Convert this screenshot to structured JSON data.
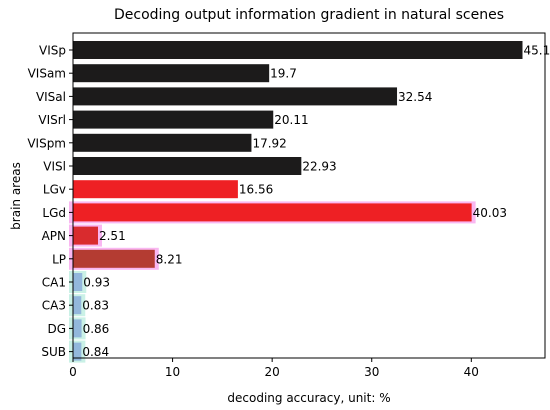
{
  "chart_data": {
    "type": "bar",
    "orientation": "horizontal",
    "title": "Decoding output information gradient in natural scenes",
    "xlabel": "decoding accuracy, unit: %",
    "ylabel": "brain areas",
    "xlim": [
      0,
      47.4
    ],
    "xticks": [
      0,
      10,
      20,
      30,
      40
    ],
    "grid": false,
    "categories": [
      "VISp",
      "VISam",
      "VISal",
      "VISrl",
      "VISpm",
      "VISl",
      "LGv",
      "LGd",
      "APN",
      "LP",
      "CA1",
      "CA3",
      "DG",
      "SUB"
    ],
    "values": [
      45.14,
      19.7,
      32.54,
      20.11,
      17.92,
      22.93,
      16.56,
      40.03,
      2.51,
      8.21,
      0.93,
      0.83,
      0.86,
      0.84
    ],
    "value_labels": [
      "45.14",
      "19.7",
      "32.54",
      "20.11",
      "17.92",
      "22.93",
      "16.56",
      "40.03",
      "2.51",
      "8.21",
      "0.93",
      "0.83",
      "0.86",
      "0.84"
    ],
    "colors": [
      "#1c1b1b",
      "#1c1b1b",
      "#1c1b1b",
      "#1c1b1b",
      "#1c1b1b",
      "#1c1b1b",
      "#ee2024",
      "#ee2024",
      "#d92b2e",
      "#b43c32",
      "#93b7dc",
      "#93b7dc",
      "#93b7dc",
      "#93b7dc"
    ],
    "glow_colors": [
      "",
      "",
      "",
      "",
      "",
      "",
      "",
      "#f47be6",
      "#f47be6",
      "#f47be6",
      "#9fe6d2",
      "#9fe6d2",
      "#9fe6d2",
      "#9fe6d2"
    ]
  }
}
